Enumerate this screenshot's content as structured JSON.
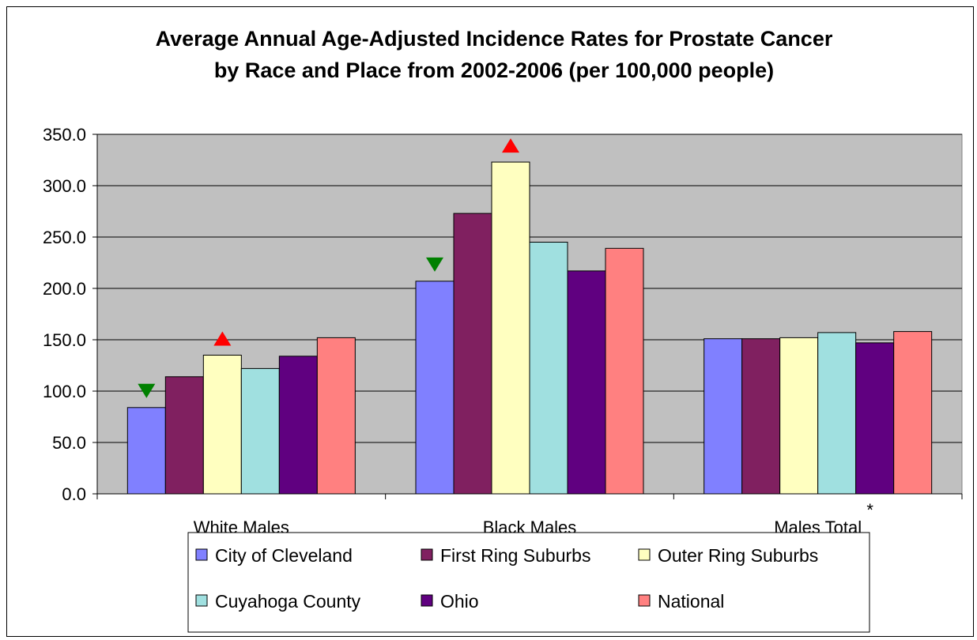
{
  "chart_data": {
    "type": "bar",
    "title_lines": [
      "Average Annual Age-Adjusted Incidence Rates for Prostate Cancer",
      "by Race and Place from 2002-2006 (per 100,000 people)"
    ],
    "categories": [
      "White Males",
      "Black Males",
      "Males Total"
    ],
    "category_note": "*",
    "ylim": [
      0,
      350
    ],
    "yticks": [
      "0.0",
      "50.0",
      "100.0",
      "150.0",
      "200.0",
      "250.0",
      "300.0",
      "350.0"
    ],
    "grid": true,
    "legend_position": "bottom",
    "series": [
      {
        "name": "City of Cleveland",
        "color": "#8080FF",
        "values": [
          84,
          207,
          151
        ]
      },
      {
        "name": "First Ring Suburbs",
        "color": "#802060",
        "values": [
          114,
          273,
          151
        ]
      },
      {
        "name": "Outer Ring Suburbs",
        "color": "#FFFFC0",
        "values": [
          135,
          323,
          152
        ]
      },
      {
        "name": "Cuyahoga County",
        "color": "#A0E0E0",
        "values": [
          122,
          245,
          157
        ]
      },
      {
        "name": "Ohio",
        "color": "#600080",
        "values": [
          134,
          217,
          147
        ]
      },
      {
        "name": "National",
        "color": "#FF8080",
        "values": [
          152,
          239,
          158
        ]
      }
    ],
    "markers": [
      {
        "category": "White Males",
        "series": "City of Cleveland",
        "direction": "down",
        "color": "#008000"
      },
      {
        "category": "White Males",
        "series": "Outer Ring Suburbs",
        "direction": "up",
        "color": "#FF0000"
      },
      {
        "category": "Black Males",
        "series": "City of Cleveland",
        "direction": "down",
        "color": "#008000"
      },
      {
        "category": "Black Males",
        "series": "Outer Ring Suburbs",
        "direction": "up",
        "color": "#FF0000"
      }
    ],
    "plot_background": "#C0C0C0"
  }
}
